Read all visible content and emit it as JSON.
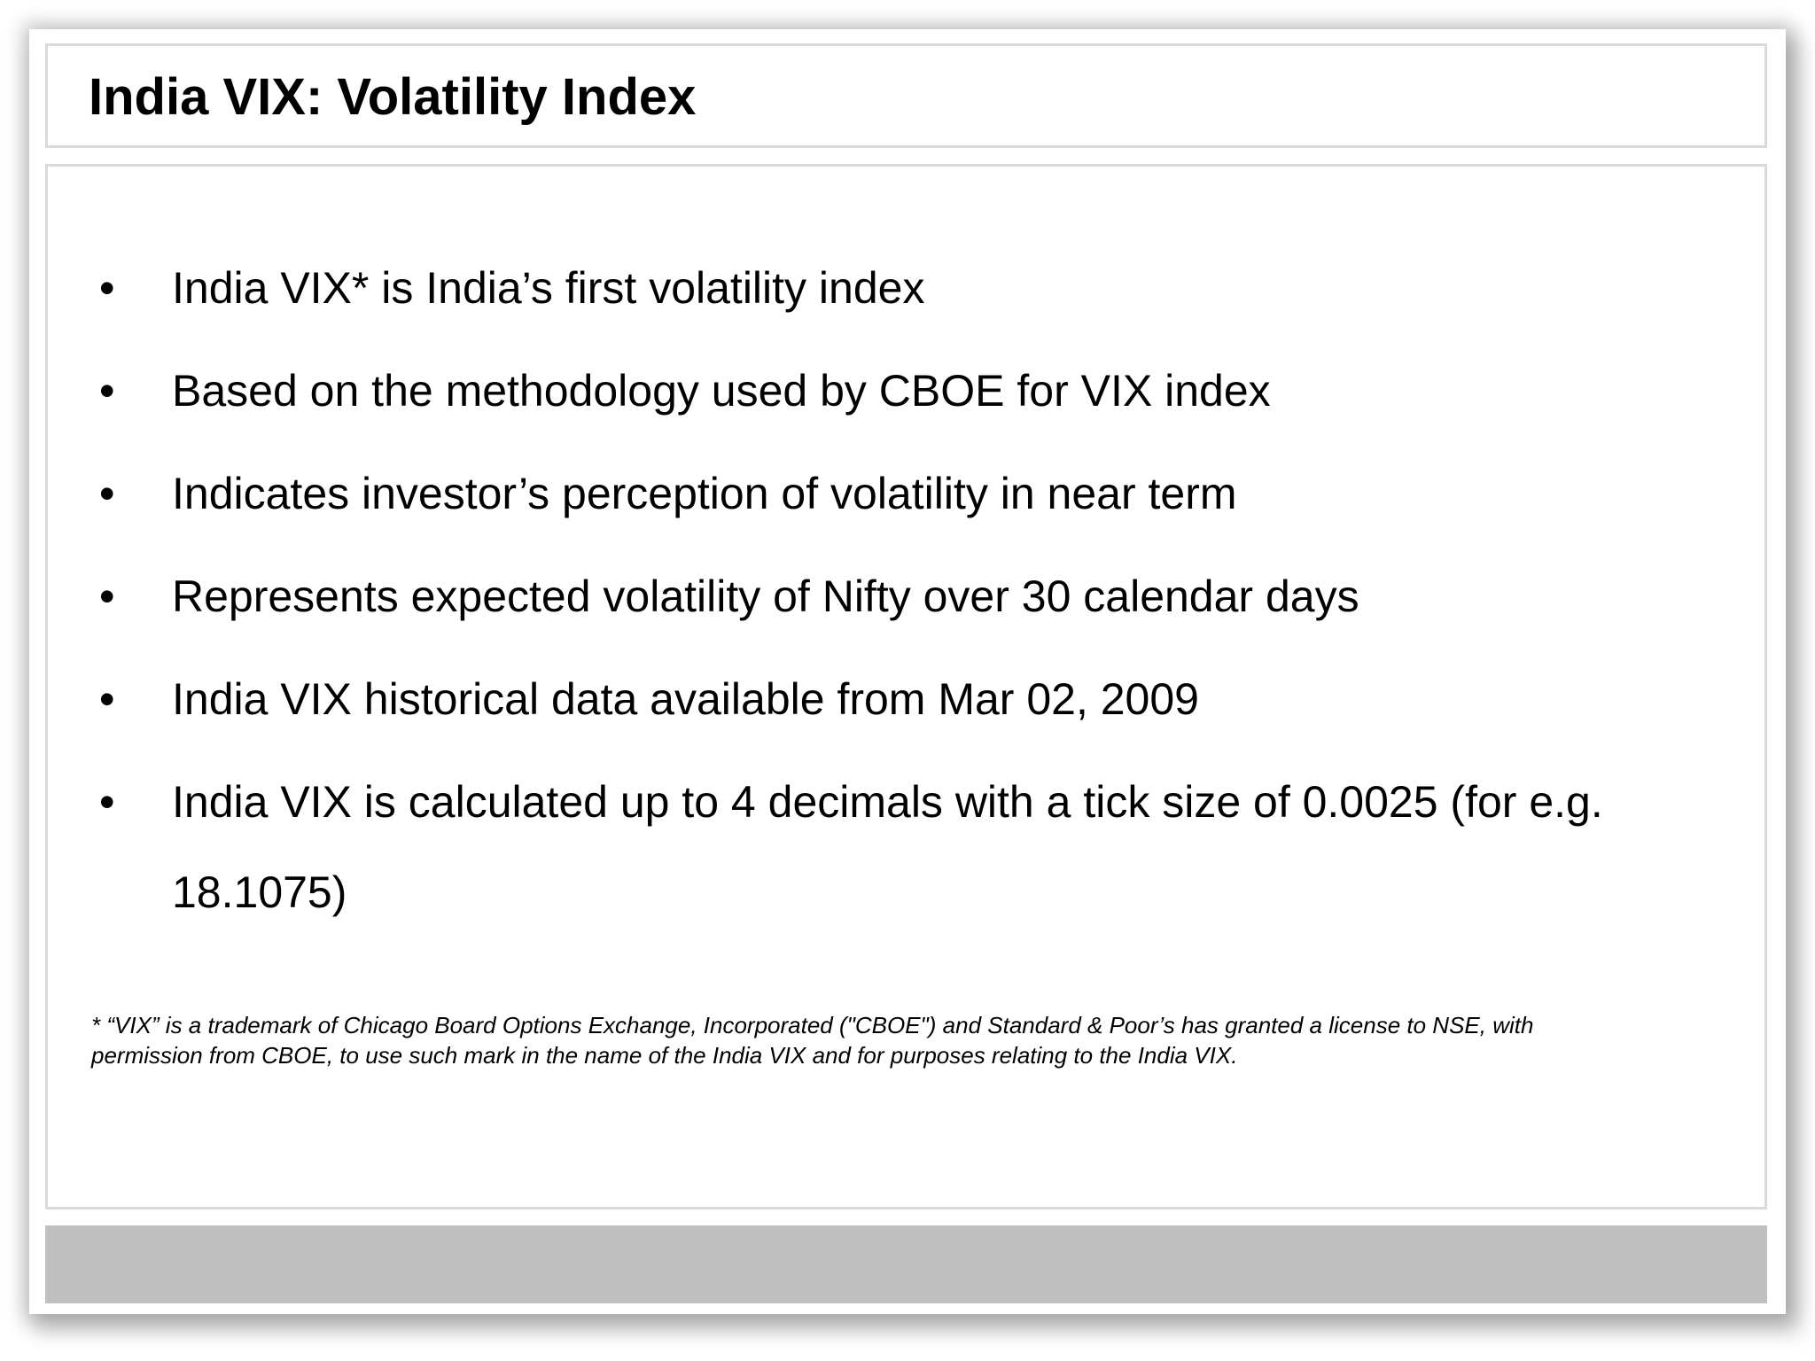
{
  "slide": {
    "title": "India VIX: Volatility Index",
    "bullets": [
      "India VIX* is India’s first volatility index",
      "Based on the methodology used by CBOE for VIX index",
      "Indicates investor’s perception of volatility in near term",
      "Represents expected volatility of Nifty over 30 calendar days",
      "India VIX historical data available from Mar 02, 2009",
      "India VIX is calculated up to 4 decimals with a tick size of 0.0025 (for e.g. 18.1075)"
    ],
    "bullet_symbol": "•",
    "footnote_line1": "* “VIX” is a trademark of Chicago Board Options Exchange, Incorporated (\"CBOE\") and Standard & Poor’s has granted a license to NSE, with",
    "footnote_line2": "permission from CBOE, to use such mark in the name of the India VIX and for purposes relating to the India VIX."
  },
  "colors": {
    "border": "#d9d9d9",
    "footer_bar": "#bfbfbf",
    "text": "#000000"
  }
}
